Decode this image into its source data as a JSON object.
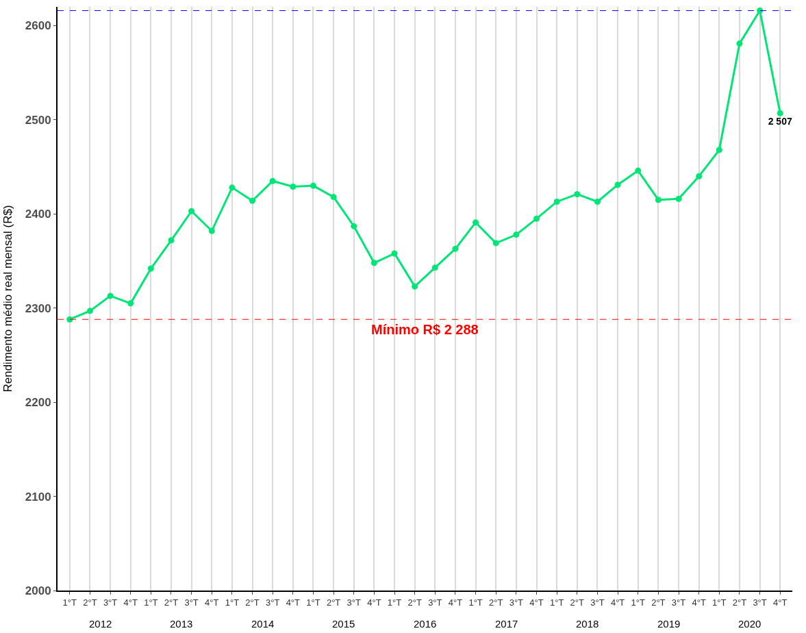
{
  "chart_data": {
    "type": "line",
    "ylabel": "Rendimento médio real mensal (R$)",
    "categories": [
      "1°T",
      "2°T",
      "3°T",
      "4°T",
      "1°T",
      "2°T",
      "3°T",
      "4°T",
      "1°T",
      "2°T",
      "3°T",
      "4°T",
      "1°T",
      "2°T",
      "3°T",
      "4°T",
      "1°T",
      "2°T",
      "3°T",
      "4°T",
      "1°T",
      "2°T",
      "3°T",
      "4°T",
      "1°T",
      "2°T",
      "3°T",
      "4°T",
      "1°T",
      "2°T",
      "3°T",
      "4°T",
      "1°T",
      "2°T",
      "3°T",
      "4°T"
    ],
    "series": [
      {
        "color": "#00e676",
        "values": [
          2288,
          2297,
          2313,
          2305,
          2342,
          2372,
          2403,
          2382,
          2428,
          2414,
          2435,
          2429,
          2430,
          2418,
          2387,
          2348,
          2358,
          2323,
          2343,
          2363,
          2391,
          2369,
          2378,
          2395,
          2413,
          2421,
          2413,
          2431,
          2446,
          2415,
          2416,
          2440,
          2468,
          2581,
          2616,
          2507
        ],
        "value_labels": [
          null,
          null,
          null,
          null,
          null,
          null,
          null,
          null,
          null,
          null,
          null,
          null,
          null,
          null,
          null,
          null,
          null,
          null,
          null,
          null,
          null,
          null,
          null,
          null,
          null,
          null,
          null,
          null,
          null,
          null,
          null,
          null,
          null,
          null,
          null,
          "2 507"
        ]
      }
    ],
    "annotations": [
      "2012",
      "2013",
      "2014",
      "2015",
      "2016",
      "2017",
      "2018",
      "2019",
      "2020"
    ],
    "ref_lines": [
      {
        "axis": "y",
        "value": 2616,
        "color": "#0000ff",
        "line_style": "dashed"
      },
      {
        "axis": "y",
        "value": 2288,
        "color": "#ff0000",
        "line_style": "dashed",
        "label": "Mínimo R$ 2 288"
      }
    ],
    "ylim": [
      2000,
      2620
    ],
    "yticks": [
      2000,
      2100,
      2200,
      2300,
      2400,
      2500,
      2600
    ],
    "grid": "x",
    "marker": "circle",
    "line_style": "solid",
    "legend": false
  }
}
